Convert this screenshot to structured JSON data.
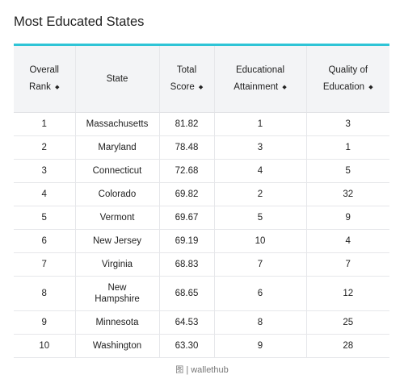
{
  "title": "Most Educated States",
  "accent_color": "#2ec4d6",
  "sort_icon": "◆",
  "columns": [
    {
      "line1": "Overall",
      "line2": "Rank"
    },
    {
      "line1": "State",
      "line2": ""
    },
    {
      "line1": "Total",
      "line2": "Score"
    },
    {
      "line1": "Educational",
      "line2": "Attainment"
    },
    {
      "line1": "Quality of",
      "line2": "Education"
    }
  ],
  "rows": [
    {
      "rank": "1",
      "state": "Massachusetts",
      "score": "81.82",
      "attainment": "1",
      "quality": "3"
    },
    {
      "rank": "2",
      "state": "Maryland",
      "score": "78.48",
      "attainment": "3",
      "quality": "1"
    },
    {
      "rank": "3",
      "state": "Connecticut",
      "score": "72.68",
      "attainment": "4",
      "quality": "5"
    },
    {
      "rank": "4",
      "state": "Colorado",
      "score": "69.82",
      "attainment": "2",
      "quality": "32"
    },
    {
      "rank": "5",
      "state": "Vermont",
      "score": "69.67",
      "attainment": "5",
      "quality": "9"
    },
    {
      "rank": "6",
      "state": "New Jersey",
      "score": "69.19",
      "attainment": "10",
      "quality": "4"
    },
    {
      "rank": "7",
      "state": "Virginia",
      "score": "68.83",
      "attainment": "7",
      "quality": "7"
    },
    {
      "rank": "8",
      "state": "New Hampshire",
      "score": "68.65",
      "attainment": "6",
      "quality": "12"
    },
    {
      "rank": "9",
      "state": "Minnesota",
      "score": "64.53",
      "attainment": "8",
      "quality": "25"
    },
    {
      "rank": "10",
      "state": "Washington",
      "score": "63.30",
      "attainment": "9",
      "quality": "28"
    }
  ],
  "credit": {
    "glyph": "图",
    "text": "| wallethub"
  }
}
